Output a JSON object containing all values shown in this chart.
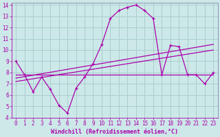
{
  "xlabel": "Windchill (Refroidissement éolien,°C)",
  "bg_color": "#cce8e8",
  "grid_color": "#aacece",
  "line_color": "#aa00aa",
  "spine_color": "#8888aa",
  "xlim": [
    -0.5,
    23.5
  ],
  "ylim": [
    4,
    14.2
  ],
  "xticks": [
    0,
    1,
    2,
    3,
    4,
    5,
    6,
    7,
    8,
    9,
    10,
    11,
    12,
    13,
    14,
    15,
    16,
    17,
    18,
    19,
    20,
    21,
    22,
    23
  ],
  "yticks": [
    4,
    5,
    6,
    7,
    8,
    9,
    10,
    11,
    12,
    13,
    14
  ],
  "curve1_x": [
    0,
    1,
    2,
    3,
    4,
    5,
    6,
    7,
    8,
    9,
    10,
    11,
    12,
    13,
    14,
    15,
    16,
    17,
    18,
    19,
    20,
    21,
    22,
    23
  ],
  "curve1_y": [
    9.0,
    7.8,
    6.3,
    7.6,
    6.5,
    5.1,
    4.4,
    6.6,
    7.6,
    8.8,
    10.5,
    12.8,
    13.5,
    13.8,
    14.0,
    13.5,
    12.8,
    7.8,
    10.4,
    10.3,
    7.8,
    7.8,
    7.0,
    8.0
  ],
  "line2_x": [
    0,
    23
  ],
  "line2_y": [
    7.8,
    7.8
  ],
  "line3_x": [
    0,
    23
  ],
  "line3_y": [
    7.5,
    10.5
  ],
  "line4_x": [
    0,
    23
  ],
  "line4_y": [
    7.2,
    10.0
  ],
  "tick_fontsize": 5.5,
  "label_fontsize": 6.0
}
